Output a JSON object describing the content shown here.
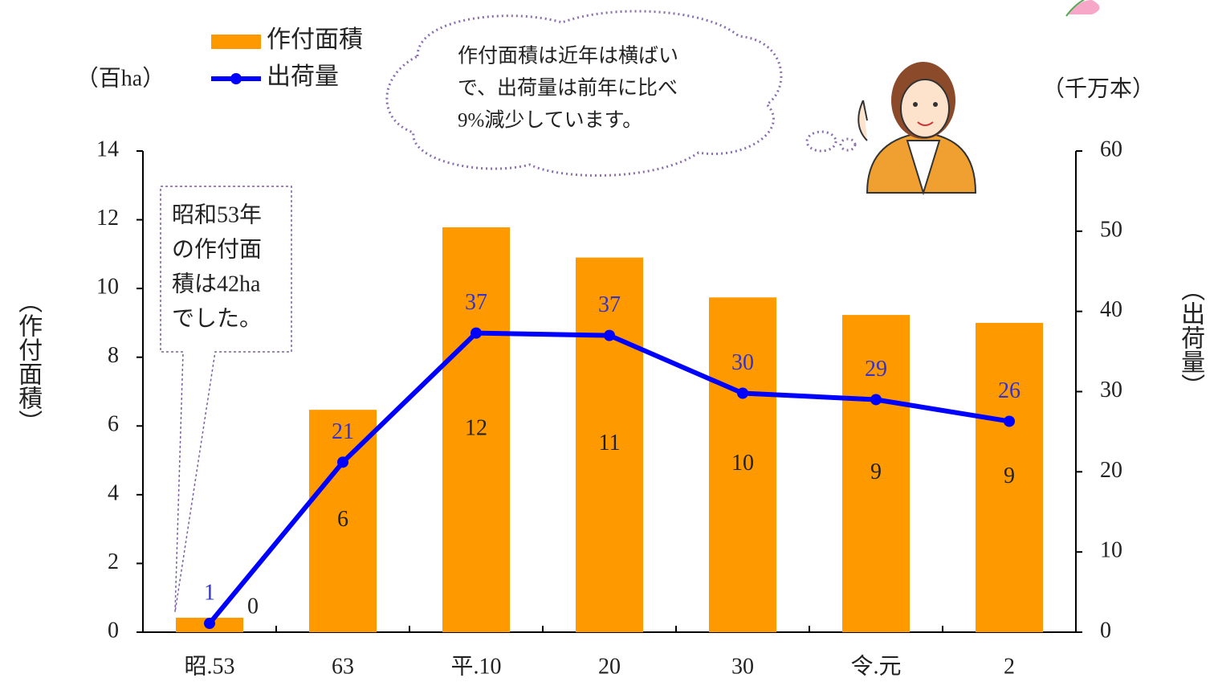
{
  "chart_data": {
    "type": "combo",
    "categories": [
      "昭.53",
      "63",
      "平.10",
      "20",
      "30",
      "令.元",
      "2"
    ],
    "series": [
      {
        "name": "作付面積",
        "type": "bar",
        "color": "#ff9900",
        "values": [
          0.42,
          6.47,
          11.78,
          10.9,
          9.74,
          9.23,
          9.0
        ],
        "value_labels": [
          "0",
          "6",
          "12",
          "11",
          "10",
          "9",
          "9"
        ]
      },
      {
        "name": "出荷量",
        "type": "line",
        "color": "#0000ff",
        "axis": "y2",
        "values": [
          1.1,
          21.2,
          37.3,
          37.0,
          29.8,
          29.0,
          26.3
        ],
        "value_labels": [
          "1",
          "21",
          "37",
          "37",
          "30",
          "29",
          "26"
        ]
      }
    ],
    "ylim": [
      0,
      14
    ],
    "yticks": [
      0,
      2,
      4,
      6,
      8,
      10,
      12,
      14
    ],
    "y2lim": [
      0,
      60
    ],
    "y2ticks": [
      0,
      10,
      20,
      30,
      40,
      50,
      60
    ],
    "y_label": "（作付面積）",
    "y2_label": "（出荷量）",
    "y_unit": "（百ha）",
    "y2_unit": "（千万本）",
    "annotation": [
      "昭和53年",
      "の作付面",
      "積は42ha",
      "でした。"
    ],
    "speech": [
      "作付面積は近年は横ばい",
      "で、出荷量は前年に比べ",
      "9%減少しています。"
    ]
  }
}
